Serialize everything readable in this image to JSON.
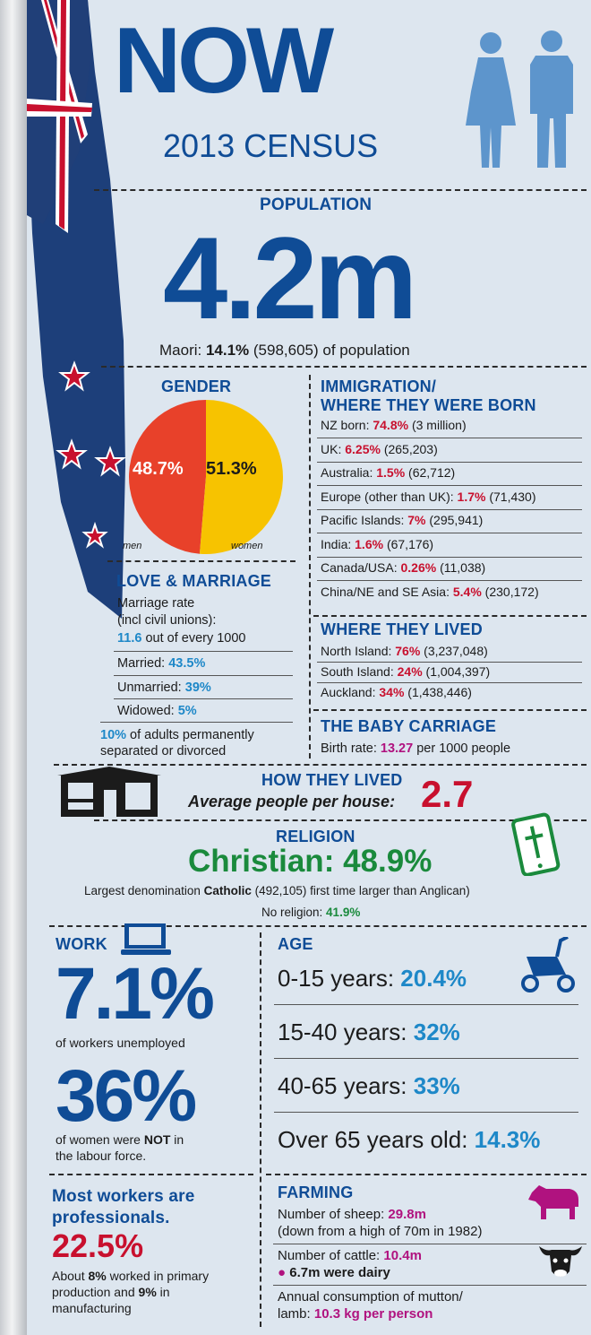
{
  "header": {
    "title": "NOW",
    "subtitle": "2013 CENSUS"
  },
  "population": {
    "label": "POPULATION",
    "value": "4.2m",
    "maori_prefix": "Maori: ",
    "maori_pct": "14.1%",
    "maori_suffix": " (598,605) of population"
  },
  "gender": {
    "label": "GENDER",
    "men_pct": "48.7%",
    "women_pct": "51.3%",
    "men_label": "men",
    "women_label": "women",
    "men_value": 48.7,
    "women_value": 51.3,
    "men_color": "#e8412a",
    "women_color": "#f7c300"
  },
  "love": {
    "label": "LOVE & MARRIAGE",
    "rate_line1": "Marriage rate",
    "rate_line2": "(incl civil unions):",
    "rate_value": "11.6",
    "rate_suffix": " out of every 1000",
    "married_label": "Married: ",
    "married": "43.5%",
    "unmarried_label": "Unmarried: ",
    "unmarried": "39%",
    "widowed_label": "Widowed: ",
    "widowed": "5%",
    "separated_pct": "10%",
    "separated_line1": " of adults permanently",
    "separated_line2": "separated or divorced"
  },
  "immigration": {
    "label_line1": "IMMIGRATION/",
    "label_line2": "WHERE THEY WERE BORN",
    "rows": [
      {
        "label": "NZ born: ",
        "pct": "74.8%",
        "count": " (3 million)"
      },
      {
        "label": "UK: ",
        "pct": "6.25%",
        "count": " (265,203)"
      },
      {
        "label": "Australia: ",
        "pct": "1.5%",
        "count": " (62,712)"
      },
      {
        "label": "Europe (other than UK): ",
        "pct": "1.7%",
        "count": " (71,430)"
      },
      {
        "label": "Pacific Islands: ",
        "pct": "7%",
        "count": " (295,941)"
      },
      {
        "label": "India: ",
        "pct": "1.6%",
        "count": " (67,176)"
      },
      {
        "label": "Canada/USA: ",
        "pct": "0.26%",
        "count": " (11,038)"
      },
      {
        "label": "China/NE and SE Asia: ",
        "pct": "5.4%",
        "count": " (230,172)"
      }
    ]
  },
  "lived": {
    "label": "WHERE THEY LIVED",
    "rows": [
      {
        "label": "North Island: ",
        "pct": "76%",
        "count": " (3,237,048)"
      },
      {
        "label": "South Island: ",
        "pct": "24%",
        "count": " (1,004,397)"
      },
      {
        "label": "Auckland: ",
        "pct": "34%",
        "count": " (1,438,446)"
      }
    ]
  },
  "baby": {
    "label": "THE BABY CARRIAGE",
    "prefix": "Birth rate: ",
    "value": "13.27",
    "suffix": " per 1000 people"
  },
  "house": {
    "label": "HOW THEY LIVED",
    "avg_label": "Average people per house: ",
    "avg_value": "2.7"
  },
  "religion": {
    "label": "RELIGION",
    "headline": "Christian: 48.9%",
    "denom_prefix": "Largest denomination ",
    "denom_name": "Catholic",
    "denom_suffix": " (492,105) first time larger than Anglican)",
    "none_label": "No religion: ",
    "none_value": "41.9%"
  },
  "work": {
    "label": "WORK",
    "unemployed_pct": "7.1%",
    "unemployed_text": "of workers unemployed",
    "women_pct": "36%",
    "women_text_pre": "of women were ",
    "women_text_not": "NOT",
    "women_text_post": " in",
    "women_text_line2": "the labour force.",
    "prof_line1": "Most workers are",
    "prof_line2": "professionals.",
    "prof_pct": "22.5%",
    "about_prefix": "About ",
    "about_primary": "8%",
    "about_mid": " worked in primary",
    "about_line2_pre": "production and ",
    "about_manuf": "9%",
    "about_line2_post": " in",
    "about_line3": "manufacturing"
  },
  "age": {
    "label": "AGE",
    "rows": [
      {
        "label": "0-15 years: ",
        "pct": "20.4%"
      },
      {
        "label": "15-40 years: ",
        "pct": "32%"
      },
      {
        "label": "40-65 years: ",
        "pct": "33%"
      },
      {
        "label": "Over 65 years old: ",
        "pct": "14.3%"
      }
    ]
  },
  "farming": {
    "label": "FARMING",
    "sheep_label": "Number of sheep: ",
    "sheep_value": "29.8m",
    "sheep_note": "(down from a high of 70m in 1982)",
    "cattle_label": "Number of cattle: ",
    "cattle_value": "10.4m",
    "dairy_value": "6.7m were dairy",
    "mutton_line1": "Annual consumption of mutton/",
    "mutton_line2_pre": "lamb: ",
    "mutton_value": "10.3 kg per person"
  },
  "icons": [
    "woman-icon",
    "man-icon",
    "house-icon",
    "bible-phone-icon",
    "computer-icon",
    "pram-icon",
    "sheep-icon",
    "cow-icon",
    "flag"
  ]
}
